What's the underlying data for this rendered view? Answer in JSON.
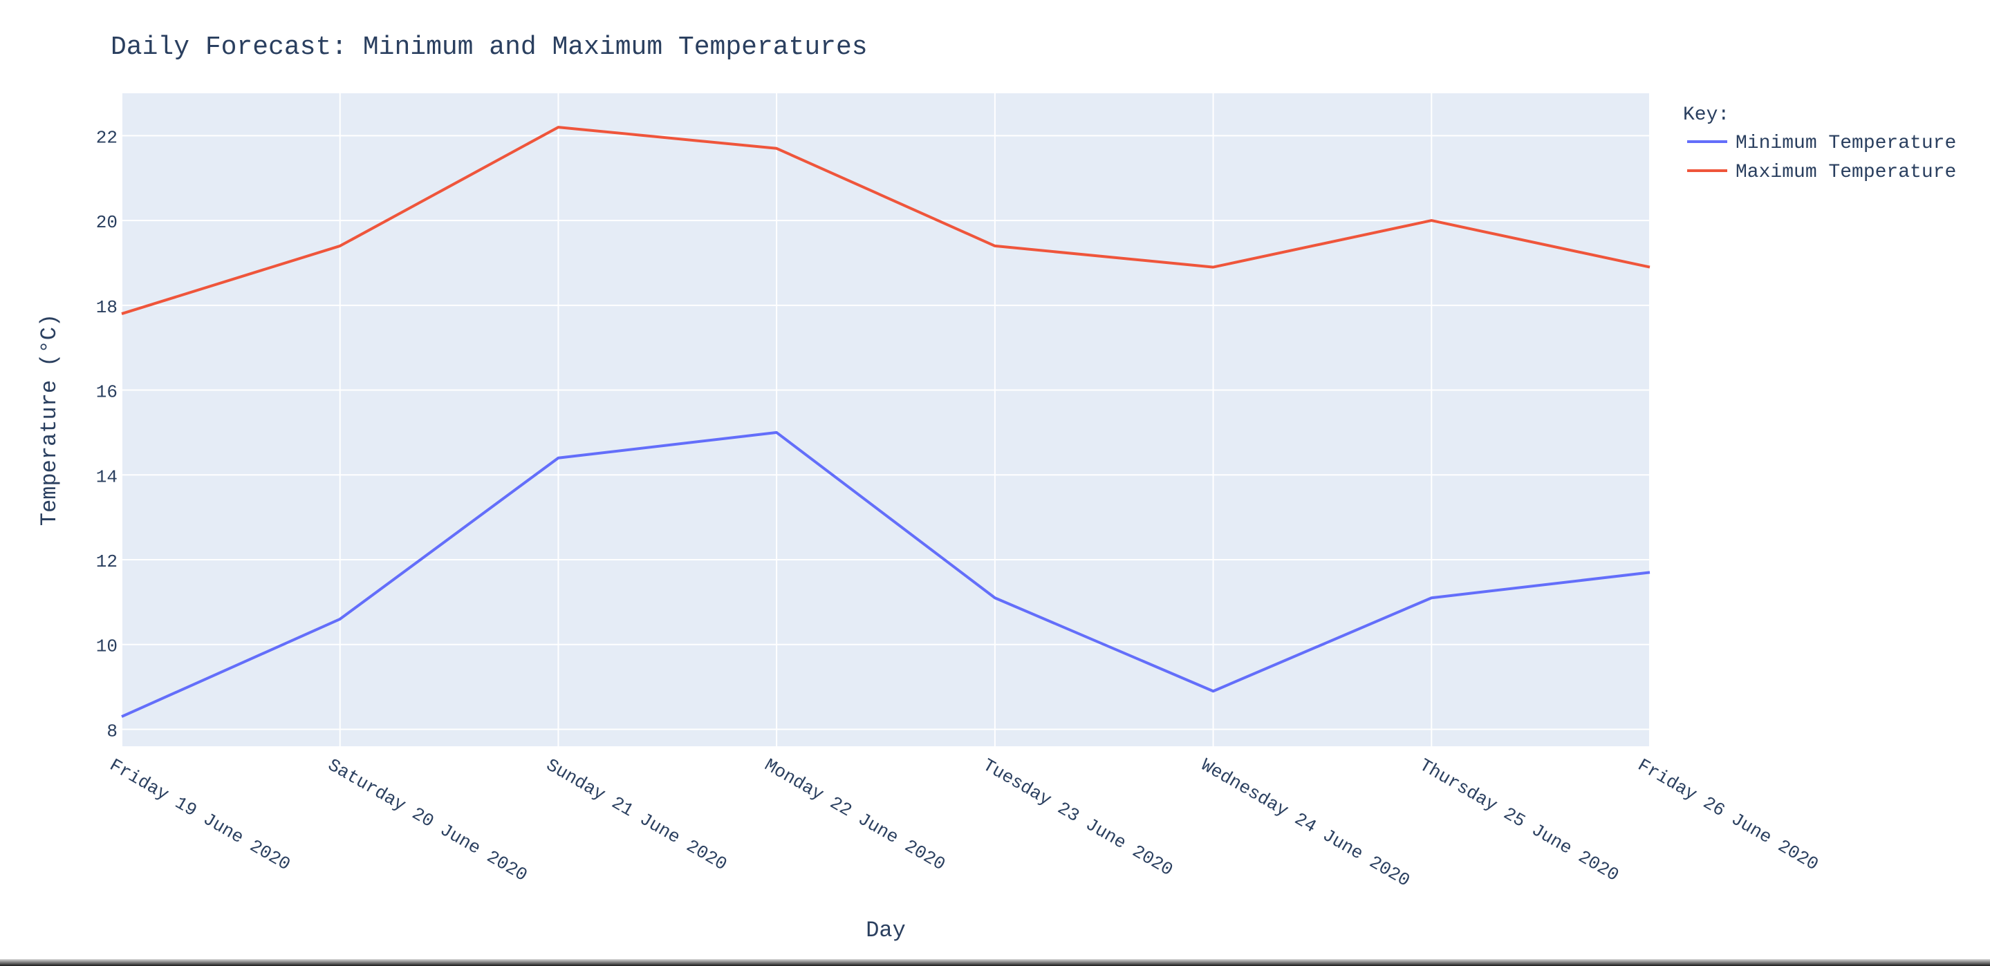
{
  "chart_data": {
    "type": "line",
    "title": "Daily Forecast: Minimum and Maximum Temperatures",
    "xlabel": "Day",
    "ylabel": "Temperature (°C)",
    "x": [
      "Friday 19 June 2020",
      "Saturday 20 June 2020",
      "Sunday 21 June 2020",
      "Monday 22 June 2020",
      "Tuesday 23 June 2020",
      "Wednesday 24 June 2020",
      "Thursday 25 June 2020",
      "Friday 26 June 2020"
    ],
    "ylim": [
      7.6,
      23.0
    ],
    "yticks": [
      8,
      10,
      12,
      14,
      16,
      18,
      20,
      22
    ],
    "grid": true,
    "legend": {
      "title": "Key:",
      "placement": "top-right outside plot"
    },
    "series": [
      {
        "name": "Minimum Temperature",
        "color": "#636efa",
        "values": [
          8.3,
          10.6,
          14.4,
          15.0,
          11.1,
          8.9,
          11.1,
          11.7
        ]
      },
      {
        "name": "Maximum Temperature",
        "color": "#ef553b",
        "values": [
          17.8,
          19.4,
          22.2,
          21.7,
          19.4,
          18.9,
          20.0,
          18.9
        ]
      }
    ],
    "colors": {
      "plot_background": "#e5ecf6",
      "gridline": "#ffffff",
      "text": "#2a3f5f"
    }
  }
}
